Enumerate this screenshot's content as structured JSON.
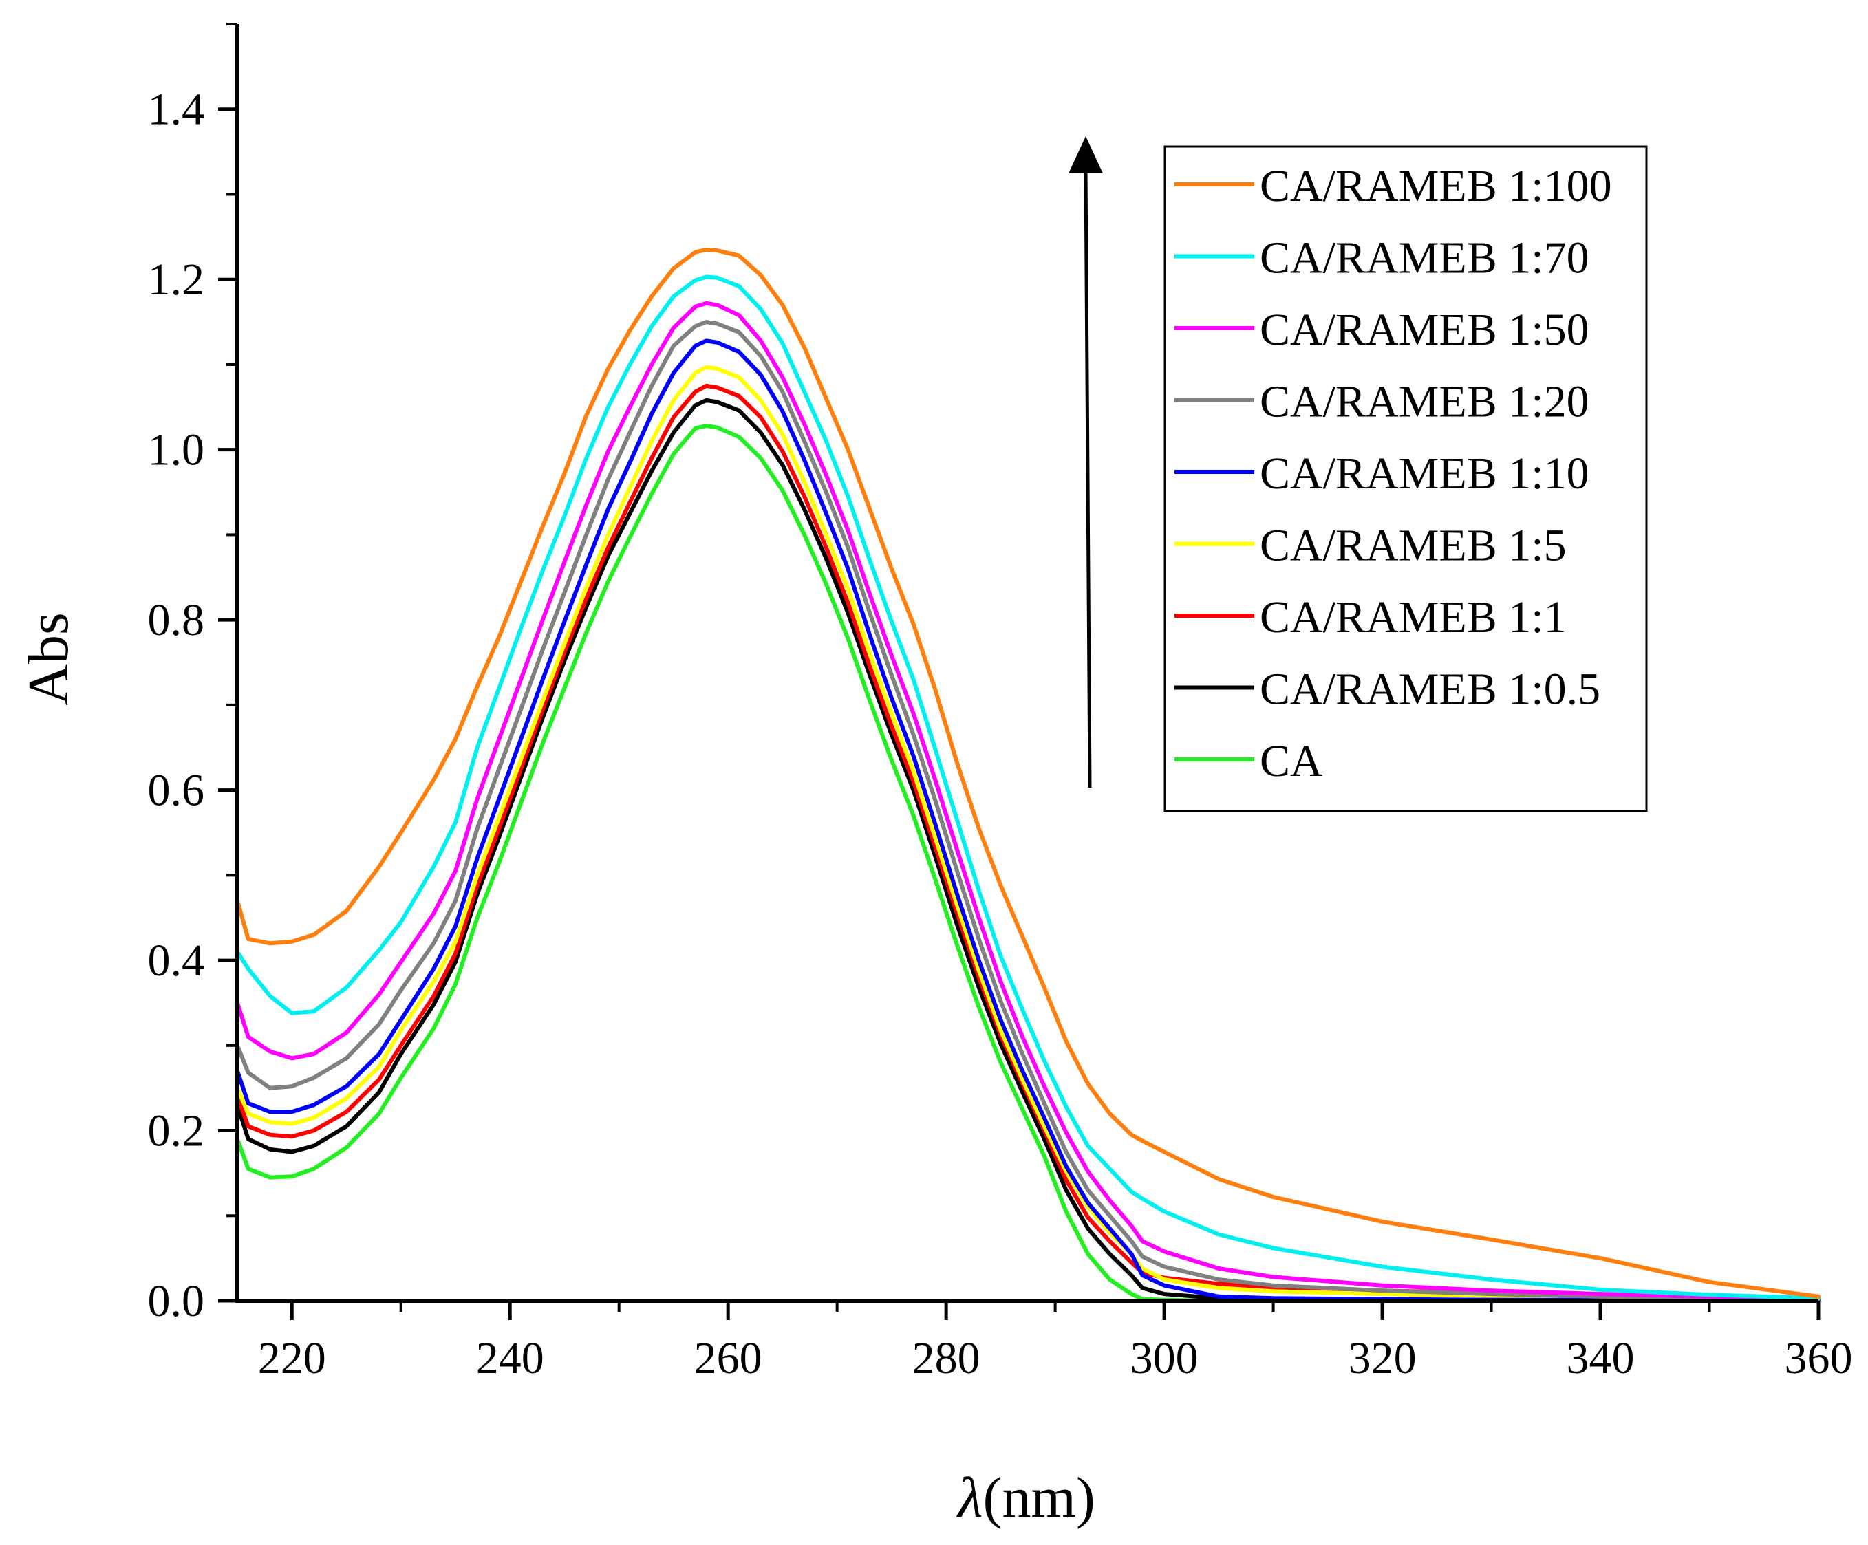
{
  "chart_data": {
    "type": "line",
    "title": "",
    "xlabel": "λ(nm)",
    "xlabel_symbol": "λ",
    "xlabel_unit": "(nm)",
    "ylabel": "Abs",
    "xlim": [
      215,
      360
    ],
    "ylim": [
      0.0,
      1.5
    ],
    "x_ticks": [
      220,
      240,
      260,
      280,
      300,
      320,
      340,
      360
    ],
    "x_tick_labels": [
      "220",
      "240",
      "260",
      "280",
      "300",
      "320",
      "340",
      "360"
    ],
    "y_ticks": [
      0.0,
      0.2,
      0.4,
      0.6,
      0.8,
      1.0,
      1.2,
      1.4
    ],
    "y_tick_labels": [
      "0.0",
      "0.2",
      "0.4",
      "0.6",
      "0.8",
      "1.0",
      "1.2",
      "1.4"
    ],
    "legend_position": "top-right",
    "annotation": "upward arrow indicating increasing absorbance with RAMEB ratio",
    "x": [
      215,
      216,
      218,
      220,
      222,
      225,
      228,
      230,
      233,
      235,
      237,
      239,
      241,
      243,
      245,
      247,
      249,
      251,
      253,
      255,
      257,
      258,
      259,
      261,
      263,
      265,
      267,
      269,
      271,
      273,
      275,
      277,
      279,
      281,
      283,
      285,
      287,
      289,
      291,
      293,
      295,
      297,
      298,
      300,
      305,
      310,
      320,
      330,
      340,
      350,
      360
    ],
    "series": [
      {
        "name": "CA/RAMEB 1:100",
        "color": "#ff7f0e",
        "values": [
          0.47,
          0.425,
          0.42,
          0.422,
          0.43,
          0.458,
          0.51,
          0.55,
          0.612,
          0.66,
          0.722,
          0.78,
          0.845,
          0.91,
          0.972,
          1.04,
          1.095,
          1.14,
          1.18,
          1.213,
          1.232,
          1.235,
          1.234,
          1.228,
          1.205,
          1.17,
          1.12,
          1.06,
          1.0,
          0.93,
          0.86,
          0.795,
          0.718,
          0.632,
          0.555,
          0.488,
          0.428,
          0.368,
          0.305,
          0.255,
          0.22,
          0.195,
          0.188,
          0.175,
          0.143,
          0.122,
          0.093,
          0.072,
          0.05,
          0.022,
          0.005
        ]
      },
      {
        "name": "CA/RAMEB 1:70",
        "color": "#00f0f0",
        "values": [
          0.41,
          0.39,
          0.358,
          0.338,
          0.34,
          0.368,
          0.412,
          0.445,
          0.51,
          0.562,
          0.65,
          0.72,
          0.79,
          0.858,
          0.922,
          0.99,
          1.05,
          1.1,
          1.145,
          1.18,
          1.199,
          1.203,
          1.202,
          1.192,
          1.165,
          1.125,
          1.068,
          1.01,
          0.945,
          0.87,
          0.798,
          0.73,
          0.648,
          0.565,
          0.482,
          0.405,
          0.342,
          0.282,
          0.228,
          0.182,
          0.155,
          0.128,
          0.12,
          0.105,
          0.078,
          0.062,
          0.04,
          0.025,
          0.013,
          0.007,
          0.003
        ]
      },
      {
        "name": "CA/RAMEB 1:50",
        "color": "#ff00ff",
        "values": [
          0.35,
          0.31,
          0.293,
          0.285,
          0.29,
          0.315,
          0.36,
          0.398,
          0.455,
          0.505,
          0.59,
          0.66,
          0.73,
          0.8,
          0.868,
          0.935,
          0.998,
          1.05,
          1.1,
          1.143,
          1.168,
          1.172,
          1.17,
          1.158,
          1.128,
          1.085,
          1.03,
          0.97,
          0.905,
          0.83,
          0.758,
          0.69,
          0.612,
          0.53,
          0.45,
          0.375,
          0.31,
          0.252,
          0.198,
          0.152,
          0.118,
          0.088,
          0.07,
          0.058,
          0.038,
          0.028,
          0.018,
          0.012,
          0.008,
          0.005,
          0.003
        ]
      },
      {
        "name": "CA/RAMEB 1:20",
        "color": "#808080",
        "values": [
          0.3,
          0.268,
          0.25,
          0.252,
          0.262,
          0.285,
          0.325,
          0.365,
          0.42,
          0.47,
          0.555,
          0.625,
          0.695,
          0.765,
          0.832,
          0.9,
          0.965,
          1.02,
          1.075,
          1.122,
          1.145,
          1.15,
          1.148,
          1.138,
          1.11,
          1.068,
          1.01,
          0.95,
          0.885,
          0.808,
          0.735,
          0.665,
          0.588,
          0.505,
          0.425,
          0.352,
          0.29,
          0.232,
          0.175,
          0.13,
          0.1,
          0.07,
          0.052,
          0.04,
          0.025,
          0.018,
          0.012,
          0.008,
          0.005,
          0.003,
          0.002
        ]
      },
      {
        "name": "CA/RAMEB 1:10",
        "color": "#0000ff",
        "values": [
          0.27,
          0.232,
          0.222,
          0.222,
          0.23,
          0.252,
          0.29,
          0.33,
          0.39,
          0.44,
          0.52,
          0.59,
          0.66,
          0.73,
          0.798,
          0.865,
          0.93,
          0.985,
          1.042,
          1.09,
          1.122,
          1.128,
          1.126,
          1.115,
          1.088,
          1.045,
          0.988,
          0.925,
          0.86,
          0.782,
          0.708,
          0.64,
          0.56,
          0.478,
          0.4,
          0.33,
          0.27,
          0.215,
          0.158,
          0.115,
          0.085,
          0.055,
          0.03,
          0.018,
          0.005,
          0.003,
          0.002,
          0.001,
          0.001,
          0.001,
          0.001
        ]
      },
      {
        "name": "CA/RAMEB 1:5",
        "color": "#ffff00",
        "values": [
          0.25,
          0.22,
          0.21,
          0.208,
          0.215,
          0.238,
          0.275,
          0.318,
          0.375,
          0.422,
          0.5,
          0.568,
          0.636,
          0.705,
          0.772,
          0.838,
          0.9,
          0.955,
          1.01,
          1.058,
          1.09,
          1.097,
          1.095,
          1.085,
          1.058,
          1.018,
          0.962,
          0.9,
          0.836,
          0.76,
          0.69,
          0.622,
          0.544,
          0.465,
          0.388,
          0.318,
          0.26,
          0.205,
          0.152,
          0.11,
          0.08,
          0.055,
          0.038,
          0.025,
          0.015,
          0.011,
          0.008,
          0.006,
          0.004,
          0.003,
          0.002
        ]
      },
      {
        "name": "CA/RAMEB 1:1",
        "color": "#ff0000",
        "values": [
          0.24,
          0.205,
          0.195,
          0.193,
          0.2,
          0.222,
          0.26,
          0.3,
          0.358,
          0.408,
          0.488,
          0.555,
          0.625,
          0.695,
          0.762,
          0.825,
          0.885,
          0.938,
          0.99,
          1.038,
          1.068,
          1.075,
          1.073,
          1.063,
          1.038,
          0.998,
          0.945,
          0.885,
          0.82,
          0.745,
          0.675,
          0.61,
          0.533,
          0.455,
          0.38,
          0.312,
          0.255,
          0.2,
          0.142,
          0.098,
          0.07,
          0.045,
          0.033,
          0.027,
          0.02,
          0.016,
          0.012,
          0.009,
          0.006,
          0.004,
          0.003
        ]
      },
      {
        "name": "CA/RAMEB 1:0.5",
        "color": "#000000",
        "values": [
          0.23,
          0.19,
          0.178,
          0.175,
          0.182,
          0.205,
          0.245,
          0.29,
          0.348,
          0.398,
          0.478,
          0.545,
          0.615,
          0.685,
          0.752,
          0.815,
          0.875,
          0.925,
          0.975,
          1.02,
          1.052,
          1.058,
          1.056,
          1.046,
          1.02,
          0.982,
          0.93,
          0.872,
          0.808,
          0.735,
          0.665,
          0.6,
          0.522,
          0.442,
          0.368,
          0.302,
          0.245,
          0.19,
          0.13,
          0.085,
          0.055,
          0.03,
          0.015,
          0.008,
          0.003,
          0.002,
          0.001,
          0.001,
          0.001,
          0.001,
          0.001
        ]
      },
      {
        "name": "CA",
        "color": "#22ee22",
        "values": [
          0.19,
          0.155,
          0.145,
          0.146,
          0.155,
          0.18,
          0.22,
          0.262,
          0.32,
          0.372,
          0.45,
          0.515,
          0.585,
          0.655,
          0.72,
          0.785,
          0.845,
          0.897,
          0.948,
          0.995,
          1.025,
          1.028,
          1.026,
          1.015,
          0.99,
          0.952,
          0.9,
          0.842,
          0.778,
          0.705,
          0.635,
          0.57,
          0.495,
          0.418,
          0.345,
          0.28,
          0.225,
          0.17,
          0.105,
          0.055,
          0.025,
          0.008,
          0.002,
          0.001,
          0.0,
          0.0,
          0.0,
          0.0,
          0.0,
          0.0,
          0.0
        ]
      }
    ]
  }
}
